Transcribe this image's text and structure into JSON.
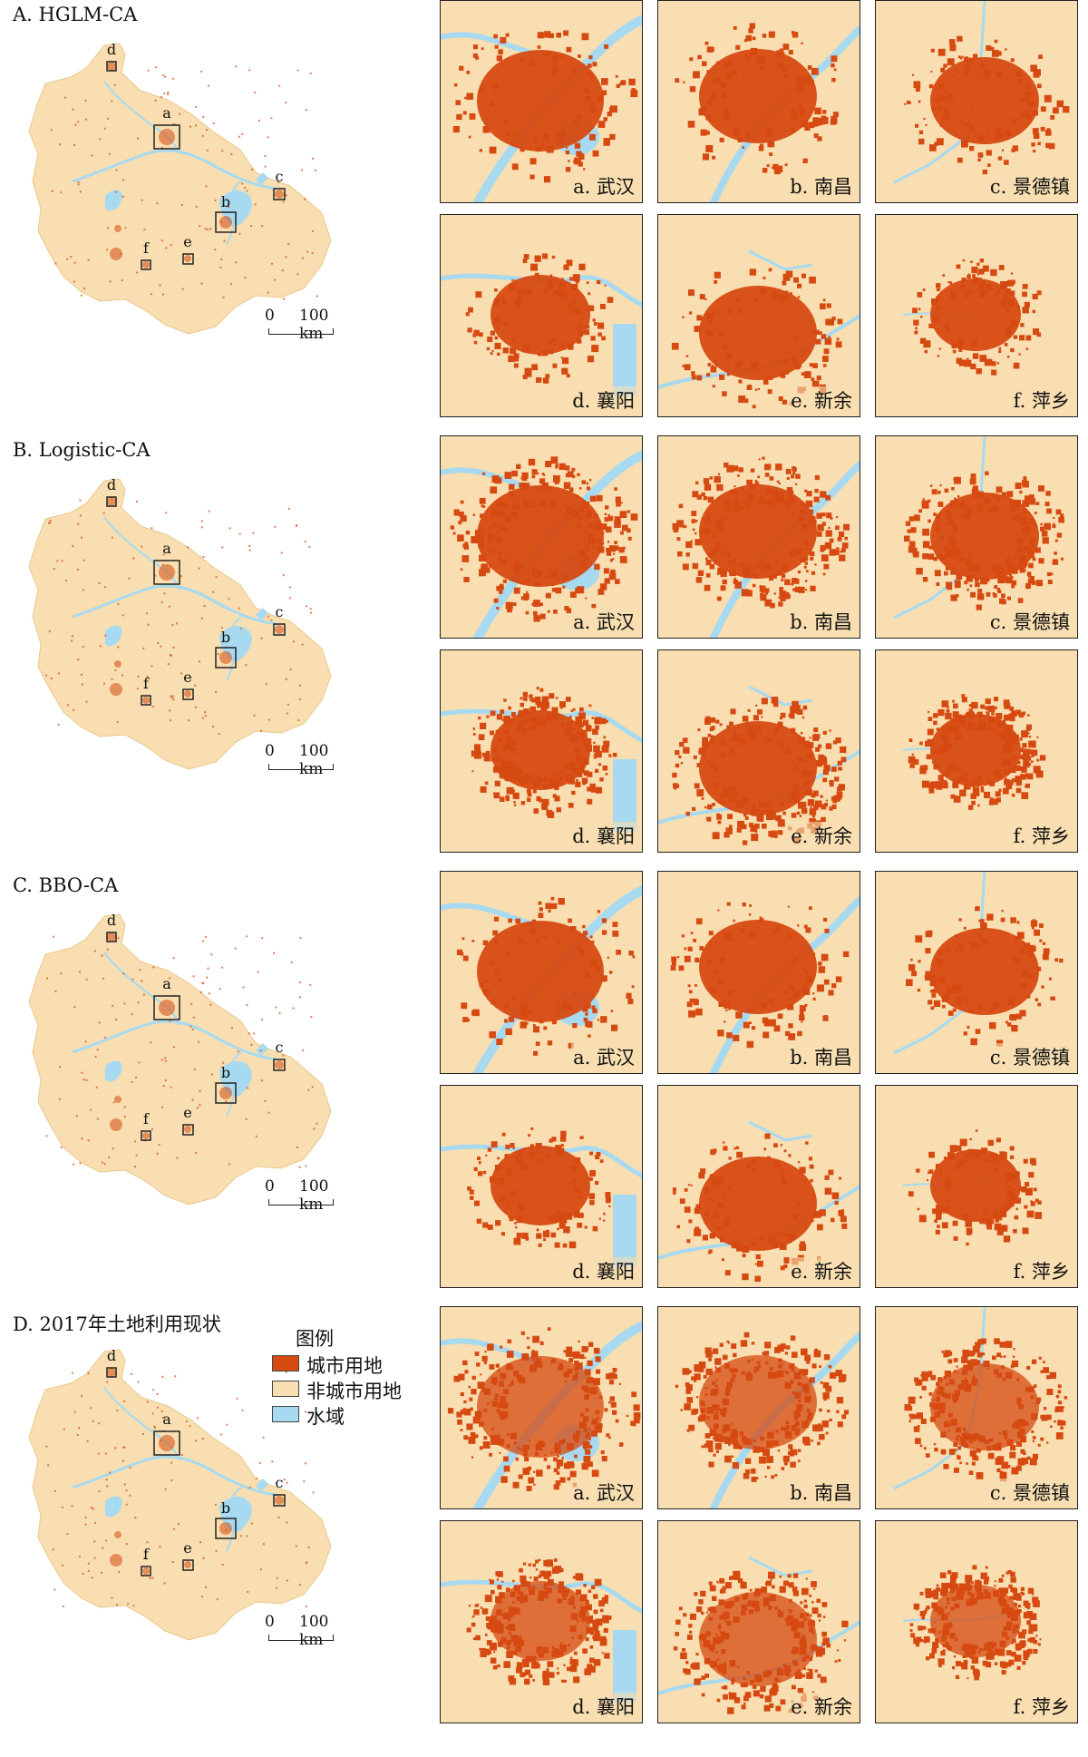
{
  "colors": {
    "urban": "#d64a12",
    "nonurban": "#f8deb0",
    "water": "#a7daf0",
    "outline": "#222222"
  },
  "sections": [
    {
      "title": "A. HGLM-CA"
    },
    {
      "title": "B. Logistic-CA"
    },
    {
      "title": "C. BBO-CA"
    },
    {
      "title": "D. 2017年土地利用现状"
    }
  ],
  "overview_markers": [
    "a",
    "b",
    "c",
    "d",
    "e",
    "f"
  ],
  "scale": {
    "zero": "0",
    "distance": "100 km"
  },
  "panels": [
    {
      "key": "a",
      "label": "a. 武汉"
    },
    {
      "key": "b",
      "label": "b. 南昌"
    },
    {
      "key": "c",
      "label": "c. 景德镇"
    },
    {
      "key": "d",
      "label": "d. 襄阳"
    },
    {
      "key": "e",
      "label": "e. 新余"
    },
    {
      "key": "f",
      "label": "f. 萍乡"
    }
  ],
  "legend": {
    "title": "图例",
    "items": [
      {
        "label": "城市用地",
        "color": "#d64a12"
      },
      {
        "label": "非城市用地",
        "color": "#f8deb0"
      },
      {
        "label": "水域",
        "color": "#a7daf0"
      }
    ]
  }
}
